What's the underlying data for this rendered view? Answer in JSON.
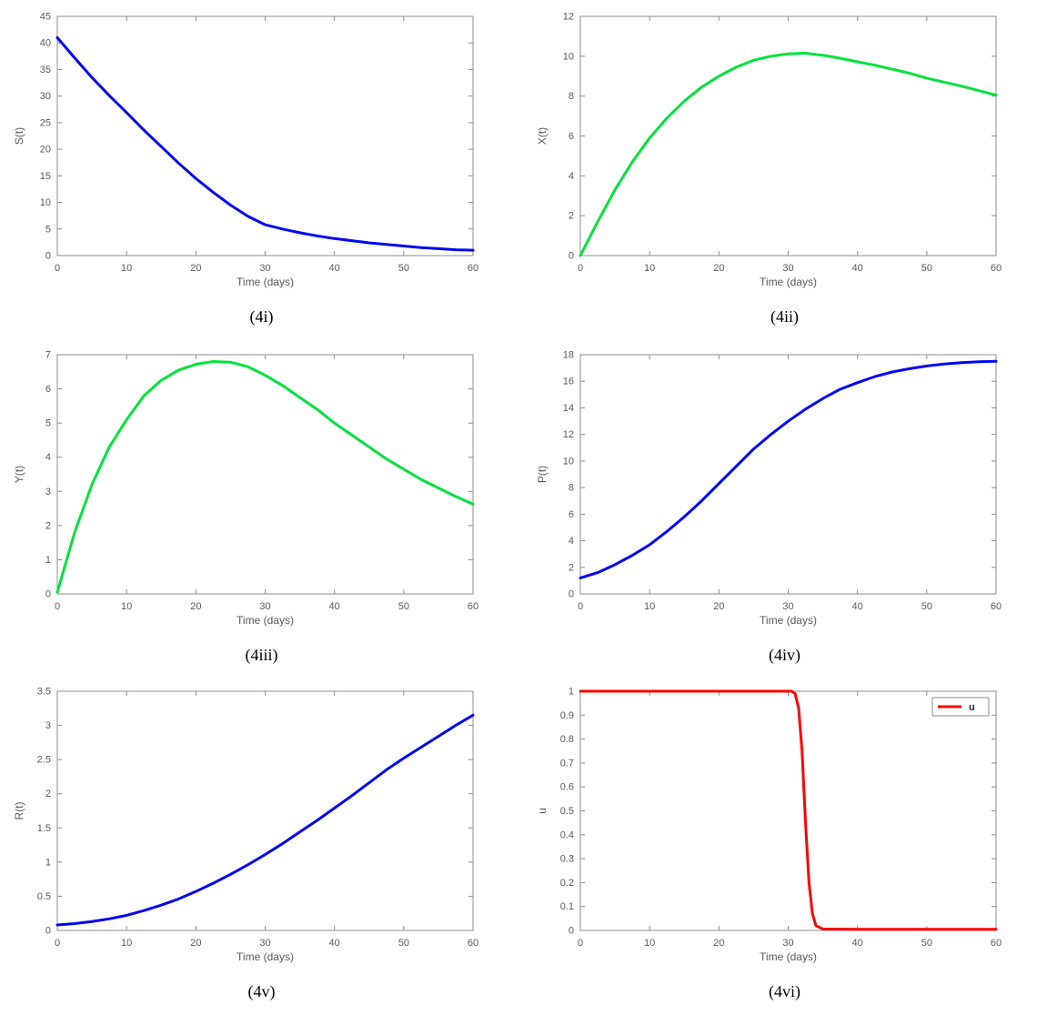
{
  "style": {
    "axis_color": "#8c8c8c",
    "tick_label_color": "#595959",
    "label_color": "#595959",
    "caption_color": "#000000",
    "blue": "#0008f0",
    "green": "#00e33c",
    "red": "#ff0000",
    "line_width": 3
  },
  "chart_data": [
    {
      "type": "line",
      "caption": "(4i)",
      "xlabel": "Time (days)",
      "ylabel": "S(t)",
      "xlim": [
        0,
        60
      ],
      "ylim": [
        0,
        45
      ],
      "xticks": [
        0,
        10,
        20,
        30,
        40,
        50,
        60
      ],
      "yticks": [
        0,
        5,
        10,
        15,
        20,
        25,
        30,
        35,
        40,
        45
      ],
      "color": "#0008f0",
      "x": [
        0,
        2.5,
        5,
        7.5,
        10,
        12.5,
        15,
        17.5,
        20,
        22.5,
        25,
        27.5,
        30,
        32.5,
        35,
        37.5,
        40,
        42.5,
        45,
        47.5,
        50,
        52.5,
        55,
        57.5,
        60
      ],
      "y": [
        41,
        37.2,
        33.5,
        30.1,
        26.9,
        23.6,
        20.5,
        17.4,
        14.5,
        11.9,
        9.5,
        7.4,
        5.8,
        5.0,
        4.3,
        3.7,
        3.2,
        2.8,
        2.4,
        2.1,
        1.8,
        1.5,
        1.3,
        1.1,
        1.0
      ],
      "legend": null
    },
    {
      "type": "line",
      "caption": "(4ii)",
      "xlabel": "Time (days)",
      "ylabel": "X(t)",
      "xlim": [
        0,
        60
      ],
      "ylim": [
        0,
        12
      ],
      "xticks": [
        0,
        10,
        20,
        30,
        40,
        50,
        60
      ],
      "yticks": [
        0,
        2,
        4,
        6,
        8,
        10,
        12
      ],
      "color": "#00e33c",
      "x": [
        0,
        2.5,
        5,
        7.5,
        10,
        12.5,
        15,
        17.5,
        20,
        22.5,
        25,
        27.5,
        30,
        32.5,
        35,
        37.5,
        40,
        42.5,
        45,
        47.5,
        50,
        52.5,
        55,
        57.5,
        60
      ],
      "y": [
        0,
        1.7,
        3.3,
        4.7,
        5.9,
        6.9,
        7.75,
        8.45,
        9.0,
        9.45,
        9.8,
        10.0,
        10.12,
        10.15,
        10.05,
        9.9,
        9.72,
        9.55,
        9.35,
        9.15,
        8.9,
        8.7,
        8.5,
        8.28,
        8.05
      ],
      "legend": null
    },
    {
      "type": "line",
      "caption": "(4iii)",
      "xlabel": "Time (days)",
      "ylabel": "Y(t)",
      "xlim": [
        0,
        60
      ],
      "ylim": [
        0,
        7
      ],
      "xticks": [
        0,
        10,
        20,
        30,
        40,
        50,
        60
      ],
      "yticks": [
        0,
        1,
        2,
        3,
        4,
        5,
        6,
        7
      ],
      "color": "#00e33c",
      "x": [
        0,
        2.5,
        5,
        7.5,
        10,
        12.5,
        15,
        17.5,
        20,
        22.5,
        25,
        27.5,
        30,
        32.5,
        35,
        37.5,
        40,
        42.5,
        45,
        47.5,
        50,
        52.5,
        55,
        57.5,
        60
      ],
      "y": [
        0.05,
        1.8,
        3.2,
        4.3,
        5.1,
        5.8,
        6.25,
        6.55,
        6.72,
        6.8,
        6.78,
        6.65,
        6.4,
        6.1,
        5.75,
        5.4,
        5.0,
        4.65,
        4.3,
        3.95,
        3.65,
        3.35,
        3.1,
        2.85,
        2.63
      ],
      "legend": null
    },
    {
      "type": "line",
      "caption": "(4iv)",
      "xlabel": "Time (days)",
      "ylabel": "P(t)",
      "xlim": [
        0,
        60
      ],
      "ylim": [
        0,
        18
      ],
      "xticks": [
        0,
        10,
        20,
        30,
        40,
        50,
        60
      ],
      "yticks": [
        0,
        2,
        4,
        6,
        8,
        10,
        12,
        14,
        16,
        18
      ],
      "color": "#0008f0",
      "x": [
        0,
        2.5,
        5,
        7.5,
        10,
        12.5,
        15,
        17.5,
        20,
        22.5,
        25,
        27.5,
        30,
        32.5,
        35,
        37.5,
        40,
        42.5,
        45,
        47.5,
        50,
        52.5,
        55,
        57.5,
        60
      ],
      "y": [
        1.2,
        1.6,
        2.2,
        2.9,
        3.7,
        4.7,
        5.8,
        7.0,
        8.3,
        9.6,
        10.9,
        12.0,
        13.0,
        13.9,
        14.7,
        15.4,
        15.9,
        16.35,
        16.7,
        16.95,
        17.15,
        17.3,
        17.4,
        17.47,
        17.5
      ],
      "legend": null
    },
    {
      "type": "line",
      "caption": "(4v)",
      "xlabel": "Time (days)",
      "ylabel": "R(t)",
      "xlim": [
        0,
        60
      ],
      "ylim": [
        0,
        3.5
      ],
      "xticks": [
        0,
        10,
        20,
        30,
        40,
        50,
        60
      ],
      "yticks": [
        0,
        0.5,
        1,
        1.5,
        2,
        2.5,
        3,
        3.5
      ],
      "color": "#0008f0",
      "x": [
        0,
        2.5,
        5,
        7.5,
        10,
        12.5,
        15,
        17.5,
        20,
        22.5,
        25,
        27.5,
        30,
        32.5,
        35,
        37.5,
        40,
        42.5,
        45,
        47.5,
        50,
        52.5,
        55,
        57.5,
        60
      ],
      "y": [
        0.08,
        0.1,
        0.13,
        0.17,
        0.22,
        0.29,
        0.37,
        0.46,
        0.57,
        0.69,
        0.82,
        0.96,
        1.11,
        1.27,
        1.44,
        1.61,
        1.79,
        1.97,
        2.16,
        2.35,
        2.52,
        2.68,
        2.84,
        3.0,
        3.15
      ],
      "legend": null
    },
    {
      "type": "line",
      "caption": "(4vi)",
      "xlabel": "Time (days)",
      "ylabel": "u",
      "xlim": [
        0,
        60
      ],
      "ylim": [
        0,
        1
      ],
      "xticks": [
        0,
        10,
        20,
        30,
        40,
        50,
        60
      ],
      "yticks": [
        0,
        0.1,
        0.2,
        0.3,
        0.4,
        0.5,
        0.6,
        0.7,
        0.8,
        0.9,
        1
      ],
      "color": "#ff0000",
      "x": [
        0,
        5,
        10,
        15,
        20,
        25,
        30,
        30.5,
        31,
        31.5,
        32,
        32.5,
        33,
        33.5,
        34,
        35,
        40,
        45,
        50,
        55,
        60
      ],
      "y": [
        1,
        1,
        1,
        1,
        1,
        1,
        1,
        1,
        0.99,
        0.93,
        0.75,
        0.45,
        0.2,
        0.07,
        0.02,
        0.006,
        0.005,
        0.005,
        0.005,
        0.005,
        0.005
      ],
      "legend": {
        "label": "u"
      }
    }
  ]
}
